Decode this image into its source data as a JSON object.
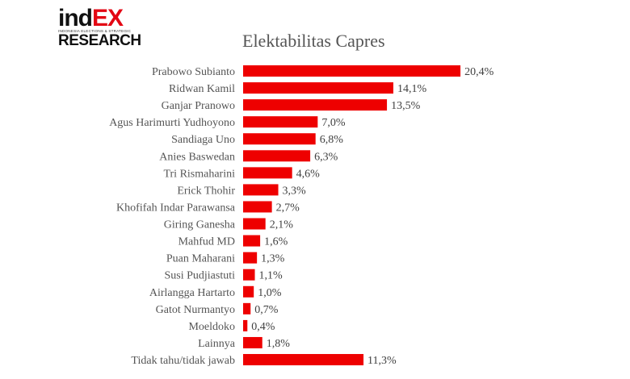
{
  "logo": {
    "brand_part1": "ind",
    "brand_part2": "EX",
    "tagline": "INDONESIA ELECTIONS & STRATEGIC",
    "brand_bottom": "RESEARCH"
  },
  "colors": {
    "bar": "#ee0000",
    "logo_accent": "#e30613"
  },
  "chart_data": {
    "type": "bar",
    "orientation": "horizontal",
    "title": "Elektabilitas Capres",
    "xlabel": "",
    "ylabel": "",
    "categories": [
      "Prabowo Subianto",
      "Ridwan Kamil",
      "Ganjar Pranowo",
      "Agus Harimurti Yudhoyono",
      "Sandiaga Uno",
      "Anies Baswedan",
      "Tri Rismaharini",
      "Erick Thohir",
      "Khofifah Indar Parawansa",
      "Giring Ganesha",
      "Mahfud MD",
      "Puan Maharani",
      "Susi Pudjiastuti",
      "Airlangga Hartarto",
      "Gatot Nurmantyo",
      "Moeldoko",
      "Lainnya",
      "Tidak tahu/tidak jawab"
    ],
    "values": [
      20.4,
      14.1,
      13.5,
      7.0,
      6.8,
      6.3,
      4.6,
      3.3,
      2.7,
      2.1,
      1.6,
      1.3,
      1.1,
      1.0,
      0.7,
      0.4,
      1.8,
      11.3
    ],
    "value_labels": [
      "20,4%",
      "14,1%",
      "13,5%",
      "7,0%",
      "6,8%",
      "6,3%",
      "4,6%",
      "3,3%",
      "2,7%",
      "2,1%",
      "1,6%",
      "1,3%",
      "1,1%",
      "1,0%",
      "0,7%",
      "0,4%",
      "1,8%",
      "11,3%"
    ],
    "grid": false,
    "legend": "none"
  }
}
